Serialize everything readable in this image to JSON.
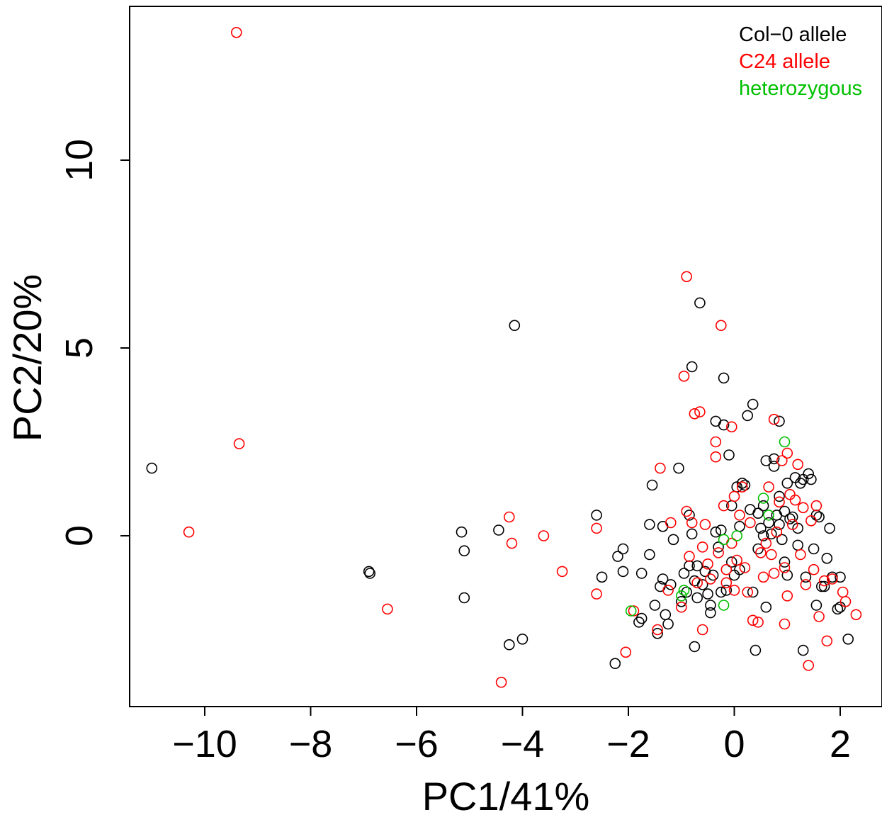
{
  "chart_data": {
    "type": "scatter",
    "title": "",
    "xlabel": "PC1/41%",
    "ylabel": "PC2/20%",
    "xlim": [
      -11.4,
      2.8
    ],
    "ylim": [
      -4.6,
      14.1
    ],
    "x_ticks": [
      -10,
      -8,
      -6,
      -4,
      -2,
      0,
      2
    ],
    "y_ticks": [
      0,
      5,
      10
    ],
    "x_tick_labels": [
      "−10",
      "−8",
      "−6",
      "−4",
      "−2",
      "0",
      "2"
    ],
    "y_tick_labels": [
      "0",
      "5",
      "10"
    ],
    "grid": false,
    "legend_position": "top-right",
    "marker": "open-circle",
    "series": [
      {
        "name": "Col−0 allele",
        "color": "#000000",
        "points": [
          [
            -11.0,
            1.8
          ],
          [
            -6.9,
            -0.95
          ],
          [
            -6.88,
            -1.0
          ],
          [
            -5.15,
            0.1
          ],
          [
            -5.1,
            -0.4
          ],
          [
            -5.1,
            -1.65
          ],
          [
            -4.45,
            0.15
          ],
          [
            -4.25,
            -2.9
          ],
          [
            -4.15,
            5.6
          ],
          [
            -4.0,
            -2.75
          ],
          [
            -2.6,
            0.55
          ],
          [
            -2.5,
            -1.1
          ],
          [
            -2.25,
            -3.4
          ],
          [
            -2.2,
            -0.55
          ],
          [
            -2.1,
            -0.35
          ],
          [
            -2.1,
            -0.95
          ],
          [
            -1.8,
            -2.3
          ],
          [
            -1.75,
            -2.2
          ],
          [
            -1.75,
            -1.0
          ],
          [
            -1.6,
            -0.5
          ],
          [
            -1.6,
            0.3
          ],
          [
            -1.55,
            1.35
          ],
          [
            -1.5,
            -1.85
          ],
          [
            -1.45,
            -2.6
          ],
          [
            -1.4,
            -1.35
          ],
          [
            -1.35,
            -1.15
          ],
          [
            -1.35,
            0.25
          ],
          [
            -1.3,
            -2.1
          ],
          [
            -1.25,
            -2.35
          ],
          [
            -1.2,
            -1.3
          ],
          [
            -1.15,
            -0.1
          ],
          [
            -1.05,
            1.8
          ],
          [
            -1.0,
            -1.75
          ],
          [
            -0.95,
            -1.0
          ],
          [
            -0.9,
            -1.5
          ],
          [
            -0.85,
            0.55
          ],
          [
            -0.85,
            -0.8
          ],
          [
            -0.8,
            4.5
          ],
          [
            -0.8,
            0.05
          ],
          [
            -0.75,
            -1.2
          ],
          [
            -0.75,
            -2.95
          ],
          [
            -0.7,
            -0.8
          ],
          [
            -0.7,
            -1.65
          ],
          [
            -0.65,
            6.2
          ],
          [
            -0.6,
            -1.3
          ],
          [
            -0.55,
            -0.95
          ],
          [
            -0.5,
            -1.55
          ],
          [
            -0.45,
            -2.05
          ],
          [
            -0.4,
            -1.05
          ],
          [
            -0.35,
            3.05
          ],
          [
            -0.35,
            0.1
          ],
          [
            -0.3,
            -0.3
          ],
          [
            -0.25,
            0.15
          ],
          [
            -0.25,
            -1.5
          ],
          [
            -0.2,
            4.2
          ],
          [
            -0.2,
            2.95
          ],
          [
            -0.15,
            -1.45
          ],
          [
            -0.1,
            2.15
          ],
          [
            -0.05,
            0.8
          ],
          [
            -0.05,
            -0.7
          ],
          [
            0.0,
            -1.05
          ],
          [
            0.05,
            1.3
          ],
          [
            0.1,
            0.25
          ],
          [
            0.15,
            1.4
          ],
          [
            0.2,
            1.35
          ],
          [
            0.25,
            3.2
          ],
          [
            0.3,
            0.7
          ],
          [
            0.35,
            3.5
          ],
          [
            0.35,
            -1.5
          ],
          [
            0.4,
            -3.05
          ],
          [
            0.45,
            0.6
          ],
          [
            0.5,
            0.2
          ],
          [
            0.55,
            0.0
          ],
          [
            0.55,
            0.8
          ],
          [
            0.6,
            -1.9
          ],
          [
            0.6,
            2.0
          ],
          [
            0.65,
            0.35
          ],
          [
            0.7,
            0.05
          ],
          [
            0.75,
            2.05
          ],
          [
            0.75,
            1.85
          ],
          [
            0.8,
            0.55
          ],
          [
            0.85,
            1.05
          ],
          [
            0.85,
            0.3
          ],
          [
            0.85,
            3.05
          ],
          [
            0.9,
            -0.1
          ],
          [
            0.95,
            0.65
          ],
          [
            1.0,
            1.4
          ],
          [
            1.0,
            -1.05
          ],
          [
            1.05,
            0.45
          ],
          [
            1.1,
            0.5
          ],
          [
            1.15,
            1.55
          ],
          [
            1.2,
            0.2
          ],
          [
            1.25,
            1.4
          ],
          [
            1.3,
            1.5
          ],
          [
            1.3,
            -3.05
          ],
          [
            1.35,
            -1.1
          ],
          [
            1.4,
            1.65
          ],
          [
            1.45,
            1.5
          ],
          [
            1.5,
            -0.35
          ],
          [
            1.55,
            0.55
          ],
          [
            1.55,
            -1.85
          ],
          [
            1.6,
            0.5
          ],
          [
            1.65,
            -1.35
          ],
          [
            1.7,
            -1.35
          ],
          [
            1.75,
            -0.6
          ],
          [
            1.8,
            0.2
          ],
          [
            1.85,
            -1.1
          ],
          [
            1.95,
            -1.95
          ],
          [
            2.0,
            -1.1
          ],
          [
            2.0,
            -1.9
          ],
          [
            2.15,
            -2.75
          ],
          [
            1.2,
            -0.25
          ],
          [
            0.95,
            -0.7
          ],
          [
            0.45,
            -0.35
          ],
          [
            -0.45,
            -1.85
          ],
          [
            0.1,
            -0.9
          ]
        ]
      },
      {
        "name": "C24 allele",
        "color": "#ff0000",
        "points": [
          [
            -9.4,
            13.4
          ],
          [
            -9.35,
            2.45
          ],
          [
            -10.3,
            0.1
          ],
          [
            -6.55,
            -1.95
          ],
          [
            -4.4,
            -3.9
          ],
          [
            -4.25,
            0.5
          ],
          [
            -4.2,
            -0.2
          ],
          [
            -3.6,
            0.0
          ],
          [
            -3.25,
            -0.95
          ],
          [
            -2.6,
            0.2
          ],
          [
            -2.6,
            -1.55
          ],
          [
            -2.05,
            -3.1
          ],
          [
            -1.9,
            -2.0
          ],
          [
            -1.45,
            -2.5
          ],
          [
            -1.4,
            1.8
          ],
          [
            -1.25,
            -1.45
          ],
          [
            -1.2,
            0.35
          ],
          [
            -1.0,
            -1.9
          ],
          [
            -0.95,
            4.25
          ],
          [
            -0.9,
            6.9
          ],
          [
            -0.9,
            0.65
          ],
          [
            -0.85,
            -0.55
          ],
          [
            -0.8,
            0.35
          ],
          [
            -0.75,
            3.25
          ],
          [
            -0.7,
            -1.25
          ],
          [
            -0.65,
            3.3
          ],
          [
            -0.6,
            -2.5
          ],
          [
            -0.55,
            0.3
          ],
          [
            -0.5,
            -0.75
          ],
          [
            -0.45,
            -1.15
          ],
          [
            -0.35,
            2.5
          ],
          [
            -0.35,
            2.1
          ],
          [
            -0.3,
            -0.45
          ],
          [
            -0.25,
            5.6
          ],
          [
            -0.2,
            0.8
          ],
          [
            -0.15,
            -0.9
          ],
          [
            -0.05,
            2.9
          ],
          [
            -0.05,
            -0.2
          ],
          [
            0.0,
            1.05
          ],
          [
            0.0,
            -1.45
          ],
          [
            0.05,
            -0.65
          ],
          [
            0.1,
            0.55
          ],
          [
            0.15,
            1.3
          ],
          [
            0.2,
            -0.85
          ],
          [
            0.25,
            -1.5
          ],
          [
            0.35,
            -2.25
          ],
          [
            0.45,
            -2.3
          ],
          [
            0.5,
            -0.45
          ],
          [
            0.55,
            -1.1
          ],
          [
            0.65,
            1.3
          ],
          [
            0.7,
            -0.5
          ],
          [
            0.75,
            3.1
          ],
          [
            0.75,
            -1.0
          ],
          [
            0.8,
            0.1
          ],
          [
            0.85,
            0.9
          ],
          [
            0.9,
            2.0
          ],
          [
            0.95,
            -0.85
          ],
          [
            0.95,
            -2.35
          ],
          [
            1.0,
            2.2
          ],
          [
            1.0,
            -1.6
          ],
          [
            1.05,
            1.1
          ],
          [
            1.1,
            0.3
          ],
          [
            1.15,
            0.95
          ],
          [
            1.2,
            1.9
          ],
          [
            1.25,
            -0.5
          ],
          [
            1.3,
            0.75
          ],
          [
            1.35,
            -1.3
          ],
          [
            1.4,
            -3.45
          ],
          [
            1.45,
            0.4
          ],
          [
            1.5,
            -0.9
          ],
          [
            1.55,
            0.8
          ],
          [
            1.6,
            -2.15
          ],
          [
            1.7,
            -1.2
          ],
          [
            1.75,
            -2.8
          ],
          [
            1.85,
            -1.15
          ],
          [
            2.05,
            -1.5
          ],
          [
            2.1,
            -1.75
          ],
          [
            2.3,
            -2.1
          ],
          [
            -0.6,
            -0.3
          ],
          [
            0.3,
            0.35
          ],
          [
            -0.15,
            -1.25
          ],
          [
            0.6,
            -0.2
          ]
        ]
      },
      {
        "name": "heterozygous",
        "color": "#00c000",
        "points": [
          [
            0.95,
            2.5
          ],
          [
            -1.95,
            -2.0
          ],
          [
            -1.0,
            -1.6
          ],
          [
            -0.2,
            -1.85
          ],
          [
            0.05,
            0.0
          ],
          [
            -0.2,
            -0.1
          ],
          [
            0.55,
            1.0
          ],
          [
            -0.95,
            -1.45
          ],
          [
            0.65,
            0.55
          ]
        ]
      }
    ]
  }
}
